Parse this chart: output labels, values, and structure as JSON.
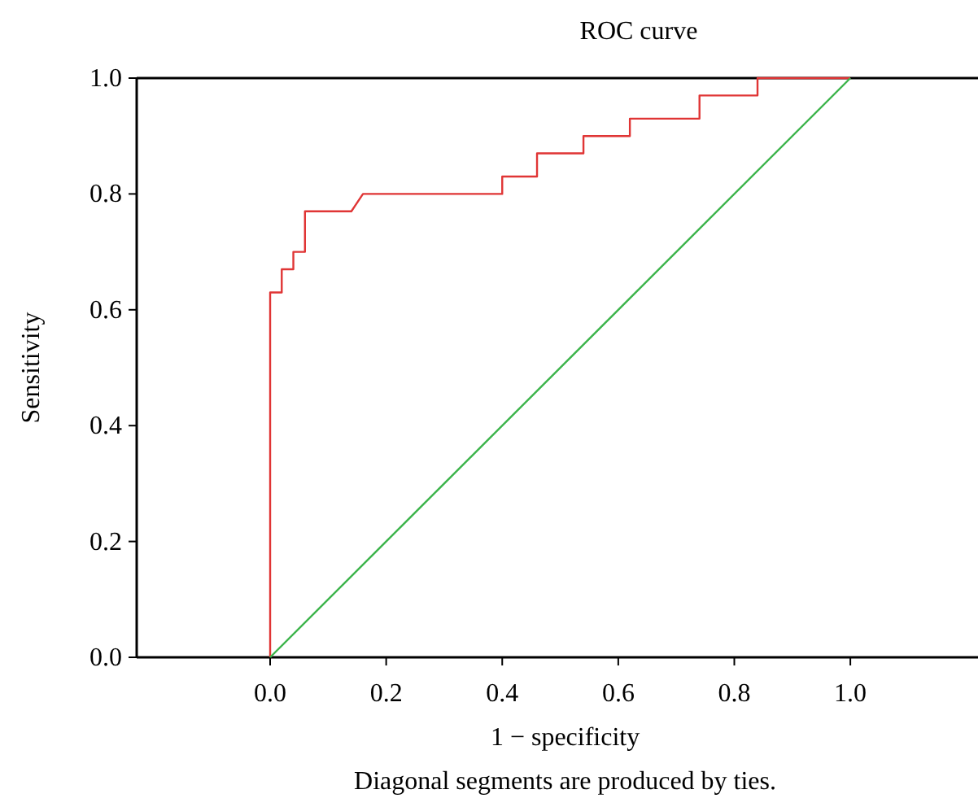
{
  "chart_data": {
    "type": "line",
    "title": "ROC curve",
    "xlabel": "1 − specificity",
    "ylabel": "Sensitivity",
    "annotations": [
      "Diagonal segments are produced by ties."
    ],
    "xlim": [
      -0.23,
      1.22
    ],
    "ylim": [
      0,
      1
    ],
    "xticks": [
      {
        "value": 0,
        "label": "0.0"
      },
      0.2,
      0.4,
      0.6,
      0.8,
      {
        "value": 1,
        "label": "1.0"
      }
    ],
    "yticks": [
      {
        "value": 0,
        "label": "0.0"
      },
      0.2,
      0.4,
      0.6,
      0.8,
      {
        "value": 1,
        "label": "1.0"
      }
    ],
    "series": [
      {
        "color": "#e03535",
        "x": [
          0,
          0,
          0.02,
          0.02,
          0.04,
          0.04,
          0.06,
          0.06,
          0.14,
          0.16,
          0.4,
          0.4,
          0.46,
          0.46,
          0.54,
          0.54,
          0.62,
          0.62,
          0.74,
          0.74,
          0.84,
          0.84,
          1
        ],
        "values": [
          0,
          0.63,
          0.63,
          0.67,
          0.67,
          0.7,
          0.7,
          0.77,
          0.77,
          0.8,
          0.8,
          0.83,
          0.83,
          0.87,
          0.87,
          0.9,
          0.9,
          0.93,
          0.93,
          0.97,
          0.97,
          1,
          1
        ]
      },
      {
        "color": "#3cb44b",
        "x": [
          0,
          1
        ],
        "values": [
          0,
          1
        ]
      }
    ]
  }
}
